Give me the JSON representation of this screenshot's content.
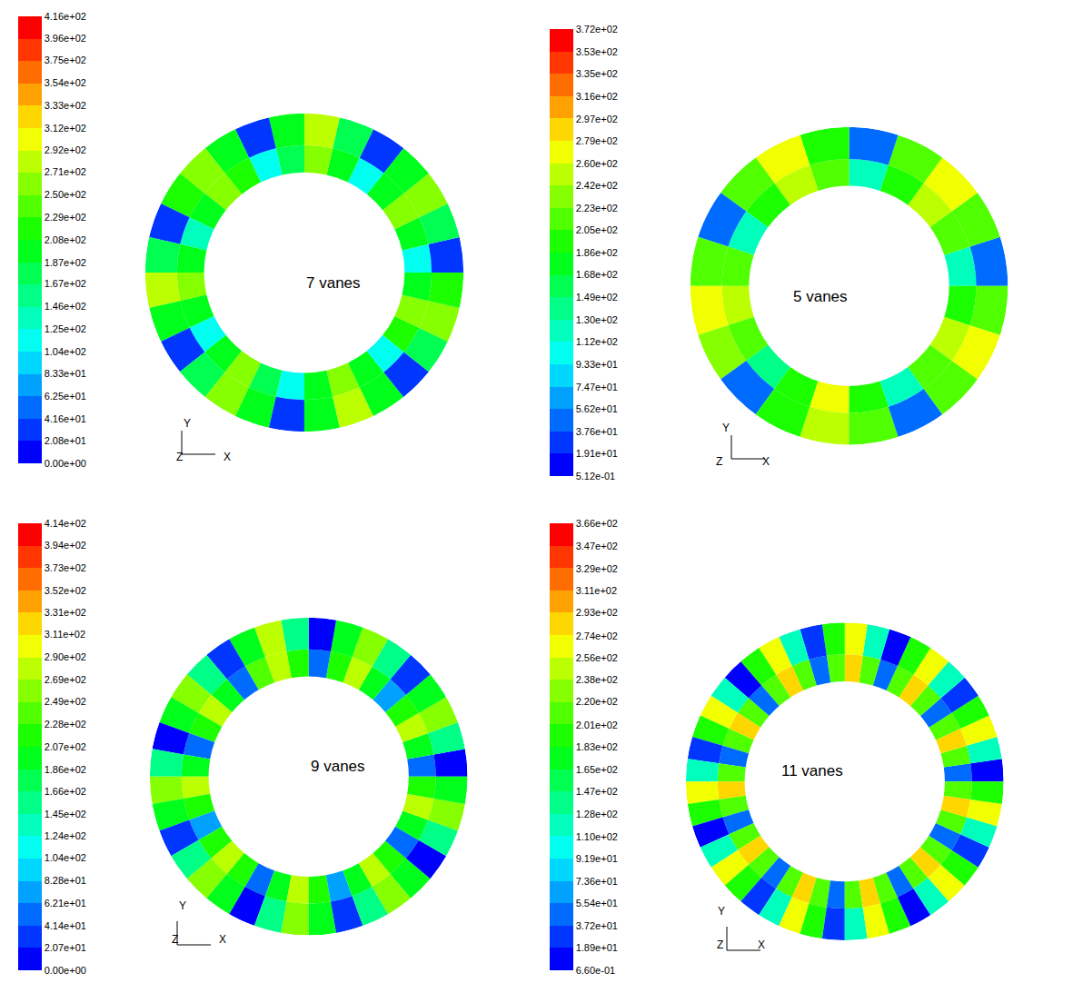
{
  "chart_data": [
    {
      "type": "polar_heatmap",
      "annotation": "7 vanes",
      "axis_labels": [
        "Y",
        "Z",
        "X"
      ],
      "tick_labels": false,
      "rlim": [
        0,
        1.0
      ],
      "r_edges": [
        0.63,
        0.8,
        1.0
      ],
      "rings": [
        [
          115,
          205,
          260,
          190,
          120,
          200,
          265,
          185,
          110,
          210,
          255,
          195,
          125,
          195,
          270,
          190,
          115,
          205,
          260,
          185,
          120,
          200,
          265,
          195,
          110,
          210,
          255,
          190
        ],
        [
          30,
          185,
          270,
          205,
          25,
          180,
          275,
          200,
          35,
          190,
          265,
          210,
          28,
          175,
          280,
          195,
          32,
          185,
          270,
          205,
          26,
          190,
          275,
          200,
          30,
          180,
          265,
          210
        ]
      ],
      "colorbar": {
        "range": [
          0,
          416
        ],
        "ticks": [
          {
            "value": 416,
            "label": "4.16e+02"
          },
          {
            "value": 396,
            "label": "3.96e+02"
          },
          {
            "value": 375,
            "label": "3.75e+02"
          },
          {
            "value": 354,
            "label": "3.54e+02"
          },
          {
            "value": 333,
            "label": "3.33e+02"
          },
          {
            "value": 312,
            "label": "3.12e+02"
          },
          {
            "value": 292,
            "label": "2.92e+02"
          },
          {
            "value": 271,
            "label": "2.71e+02"
          },
          {
            "value": 250,
            "label": "2.50e+02"
          },
          {
            "value": 229,
            "label": "2.29e+02"
          },
          {
            "value": 208,
            "label": "2.08e+02"
          },
          {
            "value": 187,
            "label": "1.87e+02"
          },
          {
            "value": 167,
            "label": "1.67e+02"
          },
          {
            "value": 146,
            "label": "1.46e+02"
          },
          {
            "value": 125,
            "label": "1.25e+02"
          },
          {
            "value": 104,
            "label": "1.04e+02"
          },
          {
            "value": 83.3,
            "label": "8.33e+01"
          },
          {
            "value": 62.5,
            "label": "6.25e+01"
          },
          {
            "value": 41.6,
            "label": "4.16e+01"
          },
          {
            "value": 20.8,
            "label": "2.08e+01"
          },
          {
            "value": 0,
            "label": "0.00e+00"
          }
        ]
      }
    },
    {
      "type": "polar_heatmap",
      "annotation": "5 vanes",
      "axis_labels": [
        "Y",
        "Z",
        "X"
      ],
      "tick_labels": false,
      "rlim": [
        0,
        1.0
      ],
      "r_edges": [
        0.63,
        0.8,
        1.0
      ],
      "rings": [
        [
          125,
          210,
          255,
          200,
          130,
          205,
          260,
          195,
          120,
          215,
          250,
          205,
          135,
          200,
          265,
          198,
          128,
          210,
          255,
          202
        ],
        [
          45,
          205,
          265,
          220,
          40,
          195,
          275,
          215,
          50,
          210,
          270,
          225,
          42,
          200,
          260,
          218,
          48,
          205,
          270,
          222
        ]
      ],
      "colorbar": {
        "range": [
          0.512,
          372
        ],
        "ticks": [
          {
            "value": 372,
            "label": "3.72e+02"
          },
          {
            "value": 353,
            "label": "3.53e+02"
          },
          {
            "value": 335,
            "label": "3.35e+02"
          },
          {
            "value": 316,
            "label": "3.16e+02"
          },
          {
            "value": 297,
            "label": "2.97e+02"
          },
          {
            "value": 279,
            "label": "2.79e+02"
          },
          {
            "value": 260,
            "label": "2.60e+02"
          },
          {
            "value": 242,
            "label": "2.42e+02"
          },
          {
            "value": 223,
            "label": "2.23e+02"
          },
          {
            "value": 205,
            "label": "2.05e+02"
          },
          {
            "value": 186,
            "label": "1.86e+02"
          },
          {
            "value": 168,
            "label": "1.68e+02"
          },
          {
            "value": 149,
            "label": "1.49e+02"
          },
          {
            "value": 130,
            "label": "1.30e+02"
          },
          {
            "value": 112,
            "label": "1.12e+02"
          },
          {
            "value": 93.3,
            "label": "9.33e+01"
          },
          {
            "value": 74.7,
            "label": "7.47e+01"
          },
          {
            "value": 56.2,
            "label": "5.62e+01"
          },
          {
            "value": 37.6,
            "label": "3.76e+01"
          },
          {
            "value": 19.1,
            "label": "1.91e+01"
          },
          {
            "value": 0.512,
            "label": "5.12e-01"
          }
        ]
      }
    },
    {
      "type": "polar_heatmap",
      "annotation": "9 vanes",
      "axis_labels": [
        "Y",
        "Z",
        "X"
      ],
      "tick_labels": false,
      "rlim": [
        0,
        1.0
      ],
      "r_edges": [
        0.63,
        0.8,
        1.0
      ],
      "rings": [
        [
          60,
          205,
          280,
          225,
          65,
          200,
          285,
          220,
          58,
          210,
          278,
          228,
          62,
          205,
          282,
          222,
          60,
          200,
          280,
          225,
          66,
          208,
          276,
          220,
          58,
          204,
          284,
          226,
          64,
          200,
          280,
          222,
          60,
          206,
          278,
          224
        ],
        [
          18,
          150,
          265,
          200,
          22,
          155,
          260,
          205,
          20,
          145,
          270,
          195,
          25,
          150,
          262,
          202,
          18,
          155,
          268,
          198,
          22,
          148,
          264,
          204,
          20,
          152,
          260,
          200,
          24,
          146,
          266,
          196,
          19,
          150,
          262,
          202
        ]
      ],
      "colorbar": {
        "range": [
          0,
          414
        ],
        "ticks": [
          {
            "value": 414,
            "label": "4.14e+02"
          },
          {
            "value": 394,
            "label": "3.94e+02"
          },
          {
            "value": 373,
            "label": "3.73e+02"
          },
          {
            "value": 352,
            "label": "3.52e+02"
          },
          {
            "value": 331,
            "label": "3.31e+02"
          },
          {
            "value": 311,
            "label": "3.11e+02"
          },
          {
            "value": 290,
            "label": "2.90e+02"
          },
          {
            "value": 269,
            "label": "2.69e+02"
          },
          {
            "value": 249,
            "label": "2.49e+02"
          },
          {
            "value": 228,
            "label": "2.28e+02"
          },
          {
            "value": 207,
            "label": "2.07e+02"
          },
          {
            "value": 186,
            "label": "1.86e+02"
          },
          {
            "value": 166,
            "label": "1.66e+02"
          },
          {
            "value": 145,
            "label": "1.45e+02"
          },
          {
            "value": 124,
            "label": "1.24e+02"
          },
          {
            "value": 104,
            "label": "1.04e+02"
          },
          {
            "value": 82.8,
            "label": "8.28e+01"
          },
          {
            "value": 62.1,
            "label": "6.21e+01"
          },
          {
            "value": 41.4,
            "label": "4.14e+01"
          },
          {
            "value": 20.7,
            "label": "2.07e+01"
          },
          {
            "value": 0,
            "label": "0.00e+00"
          }
        ]
      }
    },
    {
      "type": "polar_heatmap",
      "annotation": "11 vanes",
      "axis_labels": [
        "Y",
        "Z",
        "X"
      ],
      "tick_labels": false,
      "rlim": [
        0,
        1.0
      ],
      "r_edges": [
        0.63,
        0.8,
        1.0
      ],
      "rings": [
        [
          50,
          210,
          280,
          210,
          55,
          205,
          285,
          205,
          48,
          215,
          278,
          212,
          52,
          208,
          282,
          208,
          50,
          212,
          280,
          206,
          54,
          206,
          284,
          210,
          49,
          210,
          278,
          212,
          53,
          208,
          282,
          206,
          51,
          212,
          280,
          210,
          50,
          206,
          284,
          208,
          52,
          210,
          278,
          212
        ],
        [
          18,
          120,
          268,
          190,
          20,
          125,
          272,
          185,
          16,
          118,
          265,
          195,
          22,
          122,
          270,
          188,
          18,
          126,
          266,
          192,
          20,
          120,
          274,
          186,
          17,
          124,
          268,
          190,
          21,
          118,
          270,
          194,
          19,
          122,
          266,
          188,
          18,
          126,
          272,
          190,
          20,
          120,
          268,
          192
        ]
      ],
      "colorbar": {
        "range": [
          0.66,
          366
        ],
        "ticks": [
          {
            "value": 366,
            "label": "3.66e+02"
          },
          {
            "value": 347,
            "label": "3.47e+02"
          },
          {
            "value": 329,
            "label": "3.29e+02"
          },
          {
            "value": 311,
            "label": "3.11e+02"
          },
          {
            "value": 293,
            "label": "2.93e+02"
          },
          {
            "value": 274,
            "label": "2.74e+02"
          },
          {
            "value": 256,
            "label": "2.56e+02"
          },
          {
            "value": 238,
            "label": "2.38e+02"
          },
          {
            "value": 220,
            "label": "2.20e+02"
          },
          {
            "value": 201,
            "label": "2.01e+02"
          },
          {
            "value": 183,
            "label": "1.83e+02"
          },
          {
            "value": 165,
            "label": "1.65e+02"
          },
          {
            "value": 147,
            "label": "1.47e+02"
          },
          {
            "value": 128,
            "label": "1.28e+02"
          },
          {
            "value": 110,
            "label": "1.10e+02"
          },
          {
            "value": 91.9,
            "label": "9.19e+01"
          },
          {
            "value": 73.6,
            "label": "7.36e+01"
          },
          {
            "value": 55.4,
            "label": "5.54e+01"
          },
          {
            "value": 37.2,
            "label": "3.72e+01"
          },
          {
            "value": 18.9,
            "label": "1.89e+01"
          },
          {
            "value": 0.66,
            "label": "6.60e-01"
          }
        ]
      }
    }
  ]
}
